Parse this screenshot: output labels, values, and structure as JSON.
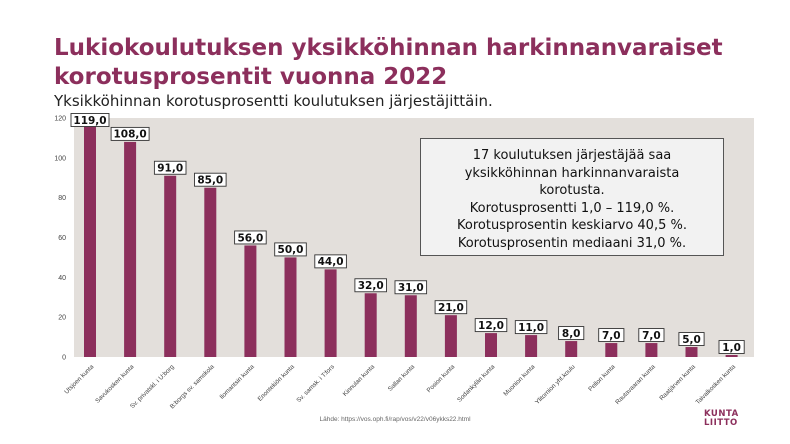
{
  "title": "Lukiokoulutuksen yksikköhinnan harkinnanvaraiset korotusprosentit vuonna 2022",
  "subtitle": "Yksikköhinnan korotusprosentti koulutuksen järjestäjittäin.",
  "infobox": {
    "lines": [
      "17 koulutuksen järjestäjää saa",
      "yksikköhinnan harkinnanvaraista",
      "korotusta.",
      "Korotusprosentti 1,0 – 119,0 %.",
      "Korotusprosentin keskiarvo 40,5 %.",
      "Korotusprosentin mediaani 31,0 %."
    ]
  },
  "source": "Lähde: https://vos.oph.fi/rap/vos/v22/v06ykks22.html",
  "logo": {
    "line1": "KUNTA",
    "line2": "LIITTO"
  },
  "colors": {
    "bar": "#8c2f5c",
    "plot_bg": "#e3dfdb",
    "title": "#8c2f5c"
  },
  "chart_data": {
    "type": "bar",
    "categories": [
      "Utsjoen kunta",
      "Savukosken kunta",
      "Sv. privatskl. i U:borg",
      "B:borgs sv. samskola",
      "Ilomantsin kunta",
      "Enontekiön kunta",
      "Sv. samsk. i T:fors",
      "Kinnulan kunta",
      "Sallan kunta",
      "Posion kunta",
      "Sodankylän kunta",
      "Muonion kunta",
      "Ylitornion yht.koulu",
      "Pellon kunta",
      "Rautavaaran kunta",
      "Raatjärven kunta",
      "Taivalkosken kunta"
    ],
    "values": [
      119.0,
      108.0,
      91.0,
      85.0,
      56.0,
      50.0,
      44.0,
      32.0,
      31.0,
      21.0,
      12.0,
      11.0,
      8.0,
      7.0,
      7.0,
      5.0,
      1.0
    ],
    "value_labels": [
      "119,0",
      "108,0",
      "91,0",
      "85,0",
      "56,0",
      "50,0",
      "44,0",
      "32,0",
      "31,0",
      "21,0",
      "12,0",
      "11,0",
      "8,0",
      "7,0",
      "7,0",
      "5,0",
      "1,0"
    ],
    "yticks": [
      0,
      20,
      40,
      60,
      80,
      100,
      120
    ],
    "ylim": [
      0,
      120
    ],
    "grid": false
  }
}
